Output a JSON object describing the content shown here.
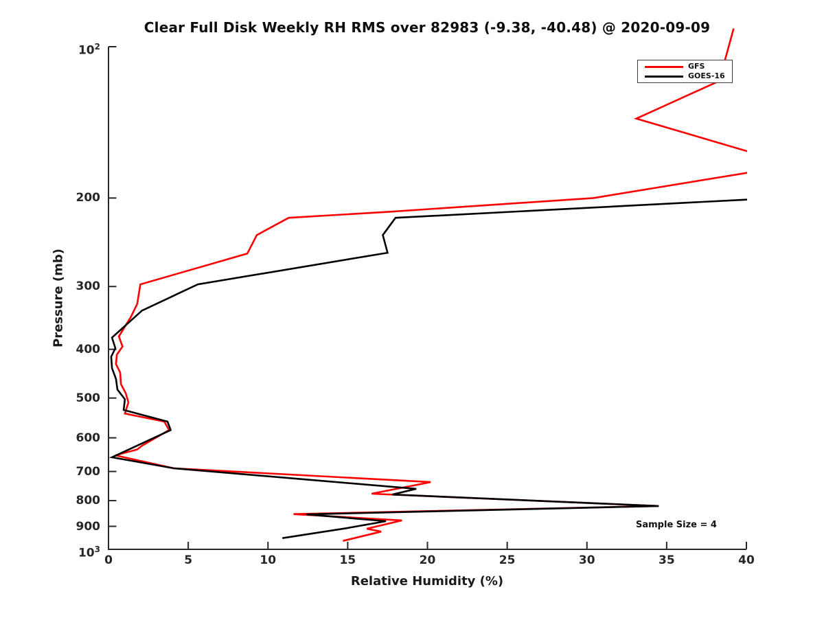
{
  "title": "Clear Full Disk Weekly RH RMS over 82983 (-9.38, -40.48) @ 2020-09-09",
  "annotation": "Sample Size = 4",
  "colors": {
    "axis": "#262626",
    "gfs": "#ff0000",
    "goes16": "#000000",
    "background": "#ffffff"
  },
  "legend": {
    "items": [
      {
        "label": "GFS",
        "color": "#ff0000"
      },
      {
        "label": "GOES-16",
        "color": "#000000"
      }
    ]
  },
  "chart_data": {
    "type": "line",
    "title": "Clear Full Disk Weekly RH RMS over 82983 (-9.38, -40.48) @ 2020-09-09",
    "xlabel": "Relative Humidity (%)",
    "ylabel": "Pressure (mb)",
    "xlim": [
      0,
      40
    ],
    "ylim": [
      100,
      1000
    ],
    "y_scale": "log10",
    "y_inverted": true,
    "grid": false,
    "legend_position": "upper right",
    "xticks": [
      {
        "v": 0,
        "label": "0"
      },
      {
        "v": 5,
        "label": "5"
      },
      {
        "v": 10,
        "label": "10"
      },
      {
        "v": 15,
        "label": "15"
      },
      {
        "v": 20,
        "label": "20"
      },
      {
        "v": 25,
        "label": "25"
      },
      {
        "v": 30,
        "label": "30"
      },
      {
        "v": 35,
        "label": "35"
      },
      {
        "v": 40,
        "label": "40"
      }
    ],
    "yticks": [
      {
        "v": 100,
        "label": "10^2"
      },
      {
        "v": 200,
        "label": "200"
      },
      {
        "v": 300,
        "label": "300"
      },
      {
        "v": 400,
        "label": "400"
      },
      {
        "v": 500,
        "label": "500"
      },
      {
        "v": 600,
        "label": "600"
      },
      {
        "v": 700,
        "label": "700"
      },
      {
        "v": 800,
        "label": "800"
      },
      {
        "v": 900,
        "label": "900"
      },
      {
        "v": 1000,
        "label": "10^3"
      }
    ],
    "points_format": "[relative_humidity_pct, pressure_mb]",
    "series": [
      {
        "name": "GFS",
        "color": "#ff0000",
        "points": [
          [
            39.2,
            92
          ],
          [
            38.3,
            117
          ],
          [
            33.1,
            139
          ],
          [
            43.0,
            172
          ],
          [
            30.4,
            200
          ],
          [
            17.6,
            213
          ],
          [
            11.3,
            219
          ],
          [
            9.3,
            237
          ],
          [
            8.7,
            258
          ],
          [
            2.0,
            297
          ],
          [
            1.8,
            325
          ],
          [
            1.4,
            345
          ],
          [
            0.65,
            377
          ],
          [
            0.88,
            395
          ],
          [
            0.52,
            410
          ],
          [
            0.47,
            428
          ],
          [
            0.73,
            445
          ],
          [
            0.78,
            469
          ],
          [
            1.08,
            489
          ],
          [
            1.25,
            510
          ],
          [
            1.16,
            521
          ],
          [
            1.03,
            537
          ],
          [
            3.5,
            557
          ],
          [
            3.8,
            579
          ],
          [
            2.1,
            622
          ],
          [
            1.8,
            633
          ],
          [
            0.43,
            650
          ],
          [
            4.1,
            690
          ],
          [
            20.2,
            735
          ],
          [
            16.5,
            775
          ],
          [
            34.5,
            820
          ],
          [
            11.6,
            851
          ],
          [
            18.4,
            876
          ],
          [
            16.2,
            910
          ],
          [
            17.1,
            922
          ],
          [
            14.7,
            962
          ]
        ]
      },
      {
        "name": "GOES-16",
        "color": "#000000",
        "points": [
          [
            41.9,
            200
          ],
          [
            18.0,
            219
          ],
          [
            17.2,
            237
          ],
          [
            17.5,
            257
          ],
          [
            5.6,
            297
          ],
          [
            2.1,
            335
          ],
          [
            0.22,
            379
          ],
          [
            0.43,
            398
          ],
          [
            0.17,
            414
          ],
          [
            0.22,
            436
          ],
          [
            0.47,
            458
          ],
          [
            0.56,
            481
          ],
          [
            1.03,
            503
          ],
          [
            0.95,
            528
          ],
          [
            3.7,
            557
          ],
          [
            3.9,
            579
          ],
          [
            0.22,
            656
          ],
          [
            4.1,
            690
          ],
          [
            19.3,
            758
          ],
          [
            17.8,
            778
          ],
          [
            34.5,
            820
          ],
          [
            12.4,
            852
          ],
          [
            17.4,
            879
          ],
          [
            14.9,
            908
          ],
          [
            10.9,
            950
          ]
        ]
      }
    ],
    "annotations": [
      {
        "text": "Sample Size = 4",
        "x_approx": 35.6,
        "pressure_approx": 890
      }
    ]
  }
}
